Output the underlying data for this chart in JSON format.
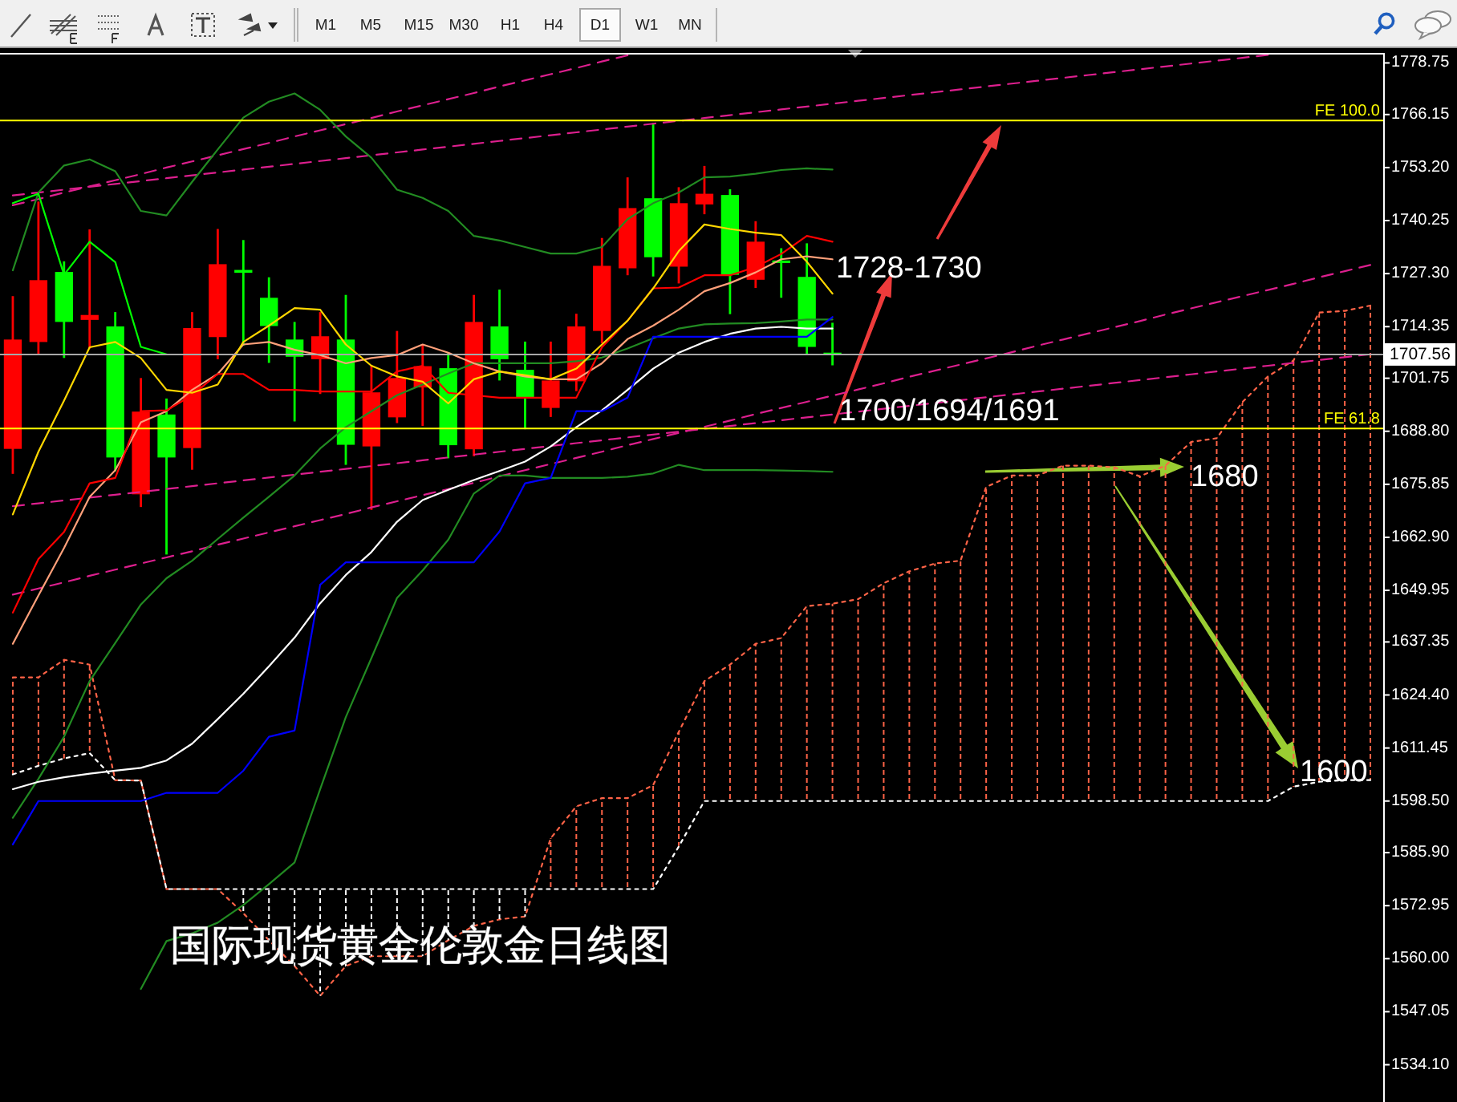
{
  "chart_data": {
    "type": "candlestick",
    "title": "国际现货黄金伦敦金日线图",
    "categories": [
      null,
      null,
      null,
      null,
      null,
      null,
      null,
      null,
      null,
      null,
      null,
      null,
      null,
      null,
      null,
      null,
      null,
      null,
      null,
      null,
      null,
      null,
      null,
      null,
      null,
      null,
      null,
      null,
      null,
      null,
      null,
      null,
      null,
      null,
      null,
      null,
      null,
      null,
      null,
      null,
      null,
      null,
      null,
      null,
      null,
      null,
      null,
      null,
      null,
      null,
      null,
      null,
      null,
      null
    ],
    "ohlc": [
      [
        1684.5,
        1721.8,
        1678.4,
        1711.2
      ],
      [
        1710.6,
        1744.9,
        1707.7,
        1725.7
      ],
      [
        1727.7,
        1730.3,
        1706.7,
        1715.5
      ],
      [
        1716.0,
        1738.1,
        1709.0,
        1717.2
      ],
      [
        1714.4,
        1717.9,
        1679.0,
        1682.4
      ],
      [
        1673.4,
        1701.8,
        1670.3,
        1693.6
      ],
      [
        1692.9,
        1696.8,
        1658.7,
        1682.4
      ],
      [
        1684.7,
        1717.9,
        1679.4,
        1714.0
      ],
      [
        1711.8,
        1738.2,
        1706.4,
        1729.6
      ],
      [
        1728.2,
        1735.5,
        1709.7,
        1727.5
      ],
      [
        1721.4,
        1726.4,
        1705.5,
        1714.5
      ],
      [
        1711.2,
        1715.5,
        1691.2,
        1707.0
      ],
      [
        1706.4,
        1717.9,
        1697.9,
        1712.0
      ],
      [
        1711.2,
        1722.1,
        1680.6,
        1685.5
      ],
      [
        1685.1,
        1704.9,
        1669.6,
        1698.3
      ],
      [
        1692.2,
        1713.3,
        1690.8,
        1701.8
      ],
      [
        1699.5,
        1710.0,
        1690.1,
        1704.7
      ],
      [
        1704.2,
        1708.1,
        1682.2,
        1685.4
      ],
      [
        1684.4,
        1722.1,
        1682.7,
        1715.5
      ],
      [
        1714.4,
        1723.4,
        1701.2,
        1706.4
      ],
      [
        1703.8,
        1710.7,
        1689.3,
        1696.8
      ],
      [
        1694.5,
        1710.7,
        1692.3,
        1701.2
      ],
      [
        1701.0,
        1717.5,
        1698.6,
        1714.4
      ],
      [
        1713.3,
        1736.0,
        1710.3,
        1729.2
      ],
      [
        1728.6,
        1750.8,
        1726.9,
        1743.3
      ],
      [
        1745.7,
        1764.1,
        1726.6,
        1731.3
      ],
      [
        1729.0,
        1748.4,
        1724.9,
        1744.5
      ],
      [
        1744.2,
        1753.6,
        1741.8,
        1746.8
      ],
      [
        1746.5,
        1747.9,
        1717.4,
        1727.0
      ],
      [
        1725.8,
        1740.1,
        1723.8,
        1735.1
      ],
      [
        1730.5,
        1733.5,
        1721.4,
        1730.1
      ],
      [
        1726.5,
        1734.7,
        1707.7,
        1709.4
      ],
      [
        1708.0,
        1715.3,
        1704.9,
        1707.56
      ],
      null,
      null,
      null,
      null,
      null,
      null,
      null,
      null,
      null,
      null,
      null,
      null,
      null,
      null,
      null,
      null,
      null,
      null,
      null,
      null,
      null
    ],
    "colors": [
      "#ff0000",
      "#ff0000",
      "#00ff00",
      "#ff0000",
      "#00ff00",
      "#ff0000",
      "#00ff00",
      "#ff0000",
      "#ff0000",
      "#00ff00",
      "#00ff00",
      "#00ff00",
      "#ff0000",
      "#00ff00",
      "#ff0000",
      "#ff0000",
      "#ff0000",
      "#00ff00",
      "#ff0000",
      "#00ff00",
      "#00ff00",
      "#ff0000",
      "#ff0000",
      "#ff0000",
      "#ff0000",
      "#00ff00",
      "#ff0000",
      "#ff0000",
      "#00ff00",
      "#ff0000",
      "#00ff00",
      "#00ff00",
      "#00ff00",
      null,
      null,
      null,
      null,
      null,
      null,
      null,
      null,
      null,
      null,
      null,
      null,
      null,
      null,
      null,
      null,
      null,
      null,
      null,
      null,
      null
    ],
    "series": [
      {
        "type": "line",
        "color": "#ff6347",
        "line_style": "dotted",
        "values": [
          1628.7,
          1628.7,
          1633.0,
          1631.8,
          1603.6,
          1603.5,
          1577.0,
          1577.0,
          1577.0,
          1571.1,
          1564.5,
          1558.2,
          1550.9,
          1558.2,
          1560.6,
          1560.6,
          1560.6,
          1564.5,
          1568.0,
          1569.6,
          1570.3,
          1589.4,
          1597.2,
          1599.2,
          1599.2,
          1602.4,
          1615.4,
          1627.8,
          1631.8,
          1636.9,
          1638.3,
          1646.1,
          1646.7,
          1647.8,
          1651.7,
          1654.6,
          1656.5,
          1657.2,
          1675.2,
          1678.0,
          1678.0,
          1680.4,
          1680.4,
          1680.0,
          1677.8,
          1680.4,
          1686.2,
          1687.1,
          1695.9,
          1702.2,
          1706.1,
          1717.8,
          1718.2,
          1719.5
        ],
        "lower": [
          1605.0,
          1607.1,
          1608.9,
          1610.2,
          null,
          null,
          null,
          null,
          null,
          null,
          null,
          null,
          null,
          null,
          null,
          null,
          null,
          null,
          null,
          null,
          null,
          1577.0,
          1577.0,
          1577.0,
          1577.0,
          1577.0,
          1587.4,
          1598.5,
          1598.5,
          1598.5,
          1598.5,
          1598.5,
          1598.5,
          1598.5,
          1598.5,
          1598.5,
          1598.5,
          1598.5,
          1598.5,
          1598.5,
          1598.5,
          1598.5,
          1598.5,
          1598.5,
          1598.5,
          1598.5,
          1598.5,
          1598.5,
          1598.5,
          1598.5,
          1602.0,
          1603.2,
          1603.6,
          1603.6
        ],
        "upper": [
          1628.7,
          1628.7,
          1633.0,
          1631.8,
          null,
          null,
          null,
          null,
          null,
          null,
          null,
          null,
          null,
          null,
          null,
          null,
          null,
          null,
          null,
          null,
          null,
          1589.4,
          1597.2,
          1599.2,
          1599.2,
          1602.4,
          1615.4,
          1627.8,
          1631.8,
          1636.9,
          1638.3,
          1646.1,
          1646.7,
          1647.8,
          1651.7,
          1654.6,
          1656.5,
          1657.2,
          1675.2,
          1678.0,
          1678.0,
          1680.4,
          1680.4,
          1680.0,
          1677.8,
          1680.4,
          1686.2,
          1687.1,
          1695.9,
          1702.2,
          1706.1,
          1717.8,
          1718.2,
          1719.5
        ]
      },
      {
        "type": "line",
        "color": "#ffffff",
        "line_style": "dotted",
        "values": [
          1605.0,
          1607.1,
          1608.9,
          1610.2,
          1603.6,
          1603.5,
          1577.0,
          1577.0,
          1577.0,
          1577.0,
          1577.0,
          1577.0,
          1577.0,
          1577.0,
          1577.0,
          1577.0,
          1577.0,
          1577.0,
          1577.0,
          1577.0,
          1577.0,
          1577.0,
          1577.0,
          1577.0,
          1577.0,
          1577.0,
          1587.4,
          1598.5,
          1598.5,
          1598.5,
          1598.5,
          1598.5,
          1598.5,
          1598.5,
          1598.5,
          1598.5,
          1598.5,
          1598.5,
          1598.5,
          1598.5,
          1598.5,
          1598.5,
          1598.5,
          1598.5,
          1598.5,
          1598.5,
          1598.5,
          1598.5,
          1598.5,
          1598.5,
          1602.0,
          1603.2,
          1603.6,
          1603.6
        ],
        "lower": [
          null,
          null,
          null,
          null,
          null,
          null,
          null,
          null,
          null,
          1571.1,
          1564.5,
          1558.2,
          1550.9,
          1558.2,
          1560.6,
          1560.6,
          1560.6,
          1564.5,
          1568.0,
          1569.6,
          1570.3,
          null,
          null,
          null,
          null,
          null,
          null,
          null,
          null,
          null,
          null,
          null,
          null,
          null,
          null,
          null,
          null,
          null,
          null,
          null,
          null,
          null,
          null,
          null,
          null,
          null,
          null,
          null,
          null,
          null,
          null,
          null,
          null,
          null
        ],
        "upper": [
          null,
          null,
          null,
          null,
          null,
          null,
          null,
          null,
          null,
          1577.0,
          1577.0,
          1577.0,
          1577.0,
          1577.0,
          1577.0,
          1577.0,
          1577.0,
          1577.0,
          1577.0,
          1577.0,
          1577.0,
          null,
          null,
          null,
          null,
          null,
          null,
          null,
          null,
          null,
          null,
          null,
          null,
          null,
          null,
          null,
          null,
          null,
          null,
          null,
          null,
          null,
          null,
          null,
          null,
          null,
          null,
          null,
          null,
          null,
          null,
          null,
          null,
          null
        ]
      },
      {
        "type": "line",
        "color": "#dd1f8e",
        "line_style": "dashed",
        "values": [
          1744.0,
          1745.5,
          1747.1,
          1748.6,
          1750.1,
          1751.6,
          1753.2,
          1754.7,
          1756.2,
          1757.7,
          1759.2,
          1760.8,
          1762.3,
          1763.8,
          1765.3,
          1766.9,
          1768.4,
          1769.9,
          1771.4,
          1773.0,
          1774.5,
          1776.0,
          1777.5,
          1779.1,
          1780.6,
          null,
          null,
          null,
          null,
          null,
          null,
          null,
          null,
          null,
          null,
          null,
          null,
          null,
          null,
          null,
          null,
          null,
          null,
          null,
          null,
          null,
          null,
          null,
          null,
          null,
          null,
          null,
          null,
          null
        ]
      },
      {
        "type": "line",
        "color": "#dd1f8e",
        "line_style": "dashed",
        "values": [
          1746.4,
          1747.1,
          1747.8,
          1748.5,
          1749.2,
          1749.9,
          1750.6,
          1751.3,
          1752.0,
          1752.7,
          1753.4,
          1754.1,
          1754.8,
          1755.5,
          1756.2,
          1756.9,
          1757.6,
          1758.3,
          1759.0,
          1759.7,
          1760.4,
          1761.1,
          1761.8,
          1762.5,
          1763.2,
          1763.9,
          1764.6,
          1765.3,
          1766.0,
          1766.7,
          1767.4,
          1768.1,
          1768.8,
          1769.5,
          1770.2,
          1770.9,
          1771.6,
          1772.3,
          1773.0,
          1773.7,
          1774.4,
          1775.1,
          1775.8,
          1776.5,
          1777.2,
          1777.9,
          1778.6,
          1779.3,
          1780.0,
          1780.7,
          null,
          null,
          null,
          null
        ]
      },
      {
        "type": "line",
        "color": "#dd1f8e",
        "line_style": "dashed",
        "values": [
          1670.5,
          1671.2,
          1671.9,
          1672.6,
          1673.3,
          1674.0,
          1674.7,
          1675.4,
          1676.1,
          1676.8,
          1677.5,
          1678.2,
          1678.9,
          1679.6,
          1680.3,
          1681.0,
          1681.7,
          1682.4,
          1683.1,
          1683.8,
          1684.5,
          1685.2,
          1685.9,
          1686.6,
          1687.3,
          1688.0,
          1688.7,
          1689.4,
          1690.1,
          1690.8,
          1691.5,
          1692.2,
          1692.9,
          1693.6,
          1694.3,
          1695.0,
          1695.7,
          1696.4,
          1697.1,
          1697.8,
          1698.5,
          1699.2,
          1699.9,
          1700.6,
          1701.3,
          1702.0,
          1702.7,
          1703.4,
          1704.1,
          1704.8,
          1705.5,
          1706.2,
          1706.9,
          1707.6
        ]
      },
      {
        "type": "line",
        "color": "#dd1f8e",
        "line_style": "dashed",
        "values": [
          1648.9,
          1650.4,
          1651.9,
          1653.5,
          1655.0,
          1656.5,
          1658.0,
          1659.5,
          1661.1,
          1662.6,
          1664.1,
          1665.6,
          1667.1,
          1668.6,
          1670.2,
          1671.7,
          1673.2,
          1674.7,
          1676.2,
          1677.8,
          1679.3,
          1680.8,
          1682.3,
          1683.8,
          1685.4,
          1686.9,
          1688.4,
          1689.9,
          1691.4,
          1693.0,
          1694.5,
          1696.0,
          1697.5,
          1699.0,
          1700.5,
          1702.1,
          1703.6,
          1705.1,
          1706.6,
          1708.1,
          1709.7,
          1711.2,
          1712.7,
          1714.2,
          1715.7,
          1717.3,
          1718.8,
          1720.3,
          1721.8,
          1723.3,
          1724.8,
          1726.4,
          1727.9,
          1729.4
        ]
      },
      {
        "type": "line",
        "color": "#228b22",
        "line_style": "solid",
        "values": [
          1728.1,
          1747.1,
          1753.7,
          1755.2,
          1752.3,
          1742.6,
          1741.5,
          1749.7,
          1757.6,
          1765.4,
          1769.3,
          1771.3,
          1767.3,
          1760.8,
          1755.6,
          1747.8,
          1745.8,
          1742.6,
          1736.5,
          1735.4,
          1733.8,
          1732.2,
          1732.2,
          1733.8,
          1740.6,
          1744.5,
          1747.1,
          1750.8,
          1751.0,
          1751.7,
          1752.6,
          1753.0,
          1752.7,
          null,
          null,
          null,
          null,
          null,
          null,
          null,
          null,
          null,
          null,
          null,
          null,
          null,
          null,
          null,
          null,
          null,
          null,
          null,
          null,
          null
        ]
      },
      {
        "type": "line",
        "color": "#228b22",
        "line_style": "solid",
        "values": [
          1594.4,
          1603.9,
          1614.2,
          1627.8,
          1637.1,
          1646.5,
          1652.9,
          1657.2,
          1662.5,
          1667.7,
          1672.8,
          1678.0,
          1684.6,
          1689.8,
          1693.7,
          1697.6,
          1700.2,
          1702.9,
          1705.4,
          1705.4,
          1705.4,
          1705.4,
          1705.9,
          1706.8,
          1709.0,
          1711.5,
          1713.9,
          1714.9,
          1715.1,
          1715.2,
          1715.6,
          1716.1,
          1716.1,
          null,
          null,
          null,
          null,
          null,
          null,
          null,
          null,
          null,
          null,
          null,
          null,
          null,
          null,
          null,
          null,
          null,
          null,
          null,
          null,
          null
        ]
      },
      {
        "type": "line",
        "color": "#228b22",
        "line_style": "solid",
        "values": [
          null,
          null,
          null,
          null,
          null,
          1552.6,
          1564.3,
          1566.2,
          1568.8,
          1573.1,
          1578.2,
          1583.5,
          1601.4,
          1619.0,
          1633.4,
          1648.1,
          1654.8,
          1662.3,
          1673.6,
          1678.0,
          1678.0,
          1677.4,
          1677.4,
          1677.4,
          1677.7,
          1678.5,
          1680.6,
          1679.3,
          1679.3,
          1679.3,
          1679.2,
          1679.1,
          1678.9,
          null,
          null,
          null,
          null,
          null,
          null,
          null,
          null,
          null,
          null,
          null,
          null,
          null,
          null,
          null,
          null,
          null,
          null,
          null,
          null,
          null
        ]
      },
      {
        "type": "line",
        "color": "#ffffff",
        "line_style": "solid",
        "values": [
          1601.4,
          1603.2,
          1604.3,
          1605.2,
          1605.9,
          1606.6,
          1608.4,
          1612.5,
          1618.5,
          1624.7,
          1631.4,
          1638.4,
          1646.8,
          1653.7,
          1659.3,
          1666.7,
          1672.0,
          1674.5,
          1676.9,
          1679.1,
          1681.4,
          1685.1,
          1689.8,
          1693.9,
          1698.9,
          1704.1,
          1708.0,
          1710.6,
          1712.6,
          1713.9,
          1714.3,
          1713.9,
          1713.9,
          null,
          null,
          null,
          null,
          null,
          null,
          null,
          null,
          null,
          null,
          null,
          null,
          null,
          null,
          null,
          null,
          null,
          null,
          null,
          null,
          null
        ]
      },
      {
        "type": "line",
        "color": "#0000ff",
        "line_style": "solid",
        "values": [
          1587.9,
          1598.5,
          1598.5,
          1598.5,
          1598.5,
          1598.5,
          1600.5,
          1600.5,
          1600.5,
          1605.9,
          1614.2,
          1615.7,
          1651.3,
          1656.8,
          1656.8,
          1656.8,
          1656.8,
          1656.8,
          1656.8,
          1664.3,
          1676.1,
          1677.4,
          1693.7,
          1693.7,
          1697.0,
          1711.9,
          1711.9,
          1711.9,
          1711.9,
          1711.9,
          1711.9,
          1711.9,
          1716.7,
          null,
          null,
          null,
          null,
          null,
          null,
          null,
          null,
          null,
          null,
          null,
          null,
          null,
          null,
          null,
          null,
          null,
          null,
          null,
          null,
          null
        ]
      },
      {
        "type": "line",
        "color": "#ffa07a",
        "line_style": "solid",
        "values": [
          1636.9,
          1648.7,
          1660.3,
          1672.8,
          1679.3,
          1691.0,
          1693.7,
          1698.9,
          1702.8,
          1710.0,
          1710.6,
          1708.7,
          1707.4,
          1705.4,
          1706.7,
          1707.4,
          1710.0,
          1708.0,
          1705.4,
          1703.4,
          1702.2,
          1701.5,
          1701.5,
          1705.4,
          1711.3,
          1714.6,
          1718.5,
          1723.0,
          1725.0,
          1727.6,
          1730.8,
          1731.5,
          1730.8,
          null,
          null,
          null,
          null,
          null,
          null,
          null,
          null,
          null,
          null,
          null,
          null,
          null,
          null,
          null,
          null,
          null,
          null,
          null,
          null,
          null
        ]
      },
      {
        "type": "line",
        "color": "#ff0000",
        "line_style": "solid",
        "values": [
          1644.5,
          1657.6,
          1664.2,
          1676.1,
          1677.4,
          1693.7,
          1693.9,
          1697.6,
          1702.8,
          1702.8,
          1698.9,
          1698.9,
          1698.5,
          1698.5,
          1698.5,
          1703.4,
          1704.8,
          1698.2,
          1697.6,
          1697.0,
          1697.0,
          1697.0,
          1697.0,
          1709.3,
          1715.8,
          1723.7,
          1723.9,
          1726.9,
          1726.9,
          1728.9,
          1732.1,
          1736.5,
          1735.1,
          null,
          null,
          null,
          null,
          null,
          null,
          null,
          null,
          null,
          null,
          null,
          null,
          null,
          null,
          null,
          null,
          null,
          null,
          null,
          null,
          null
        ]
      },
      {
        "type": "line",
        "color": "#ffd700",
        "line_style": "solid",
        "values": [
          1668.5,
          1683.8,
          1696.3,
          1709.3,
          1710.6,
          1706.7,
          1698.9,
          1698.2,
          1700.2,
          1710.6,
          1714.6,
          1718.9,
          1718.5,
          1710.0,
          1704.8,
          1702.2,
          1700.9,
          1695.6,
          1701.5,
          1703.4,
          1702.5,
          1701.5,
          1704.1,
          1710.0,
          1715.8,
          1723.7,
          1732.8,
          1739.3,
          1738.2,
          1737.3,
          1736.7,
          1730.2,
          1722.4,
          null,
          null,
          null,
          null,
          null,
          null,
          null,
          null,
          null,
          null,
          null,
          null,
          null,
          null,
          null,
          null,
          null,
          null,
          null,
          null,
          null
        ]
      },
      {
        "type": "line",
        "color": "#00ff00",
        "line_style": "solid",
        "values": [
          1744.5,
          1746.8,
          1727.0,
          1735.1,
          1730.1,
          1709.4,
          1707.6,
          null,
          null,
          null,
          null,
          null,
          null,
          null,
          null,
          null,
          null,
          null,
          null,
          null,
          null,
          null,
          null,
          null,
          null,
          null,
          null,
          null,
          null,
          null,
          null,
          null,
          null,
          null,
          null,
          null,
          null,
          null,
          null,
          null,
          null,
          null,
          null,
          null,
          null,
          null,
          null,
          null,
          null,
          null,
          null,
          null,
          null,
          null
        ]
      }
    ],
    "ylim": [
      1525,
      1780.8
    ],
    "yticks": [
      1778.75,
      1766.15,
      {
        "value": 1753.2,
        "label": "1753.20"
      },
      1740.25,
      {
        "value": 1727.3,
        "label": "1727.30"
      },
      1714.35,
      1701.75,
      {
        "value": 1688.8,
        "label": "1688.80"
      },
      1675.85,
      {
        "value": 1662.9,
        "label": "1662.90"
      },
      1649.95,
      1637.35,
      {
        "value": 1624.4,
        "label": "1624.40"
      },
      1611.45,
      {
        "value": 1598.5,
        "label": "1598.50"
      },
      {
        "value": 1585.9,
        "label": "1585.90"
      },
      1572.95,
      {
        "value": 1560,
        "label": "1560.00"
      },
      1547.05,
      {
        "value": 1534.1,
        "label": "1534.10"
      }
    ],
    "tick_labels": "y",
    "ref_lines": [
      {
        "axis": "y",
        "value": 1764.7,
        "label": "FE 100.0",
        "color": "#ffff00"
      },
      {
        "axis": "y",
        "value": 1689.5,
        "label": "FE 61.8",
        "color": "#ffff00"
      },
      {
        "axis": "y",
        "value": 1707.56,
        "label": "1707.56",
        "color": "#a9a9a9"
      }
    ],
    "annotations": [
      "M1",
      "M5",
      "M15",
      "M30",
      "H1",
      "H4",
      "D1",
      "W1",
      "MN",
      "1728-1730",
      "1700/1694/1691",
      "1680",
      "1600"
    ]
  }
}
